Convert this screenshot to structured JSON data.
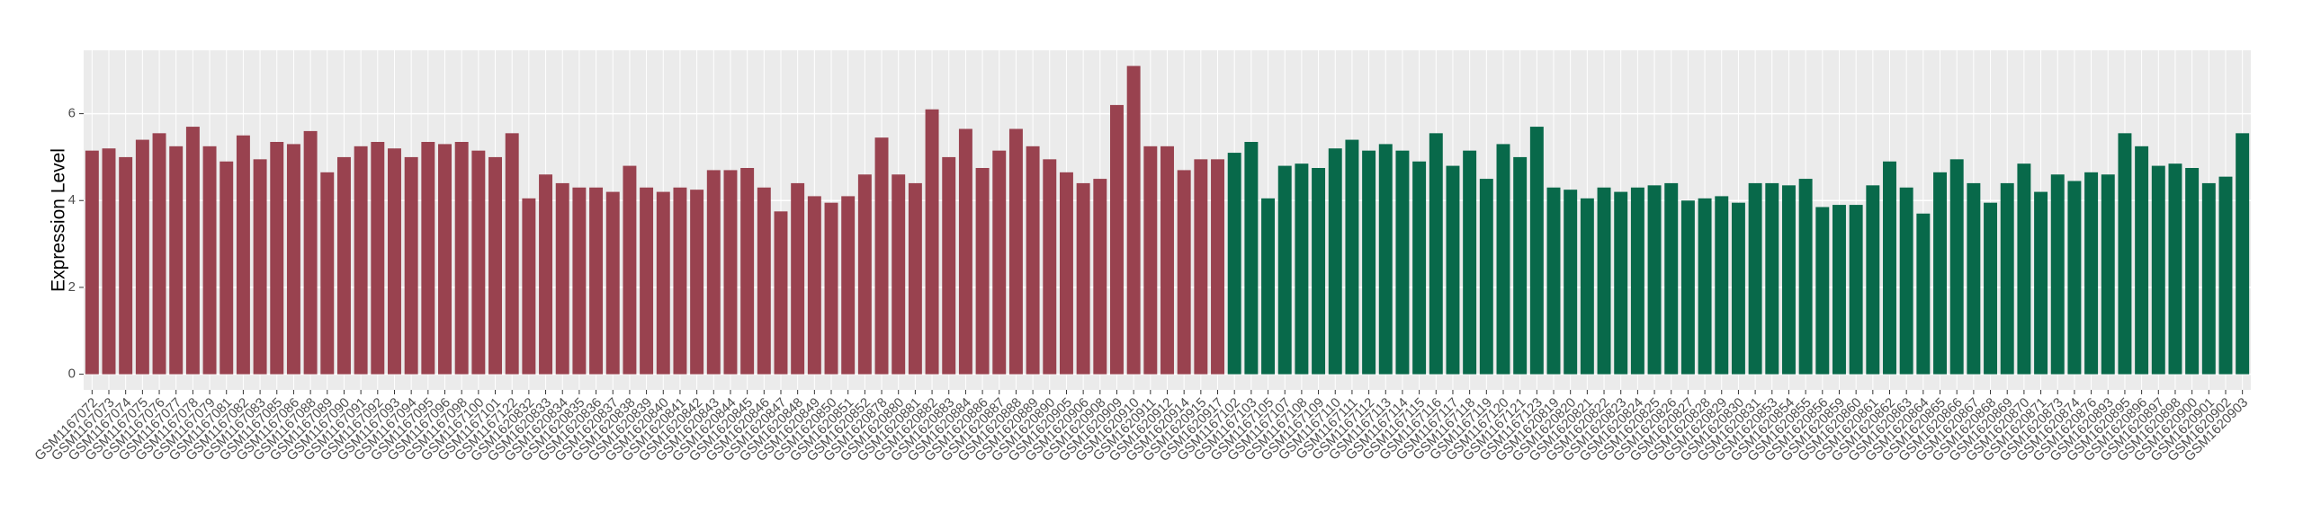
{
  "chart_data": {
    "type": "bar",
    "y_label": "Expression Level",
    "ylim": [
      -0.36,
      7.46
    ],
    "yticks": [
      0,
      2,
      4,
      6
    ],
    "grid": true,
    "groups": [
      {
        "color": "#99424f",
        "categories": [
          "GSM1167072",
          "GSM1167073",
          "GSM1167074",
          "GSM1167075",
          "GSM1167076",
          "GSM1167077",
          "GSM1167078",
          "GSM1167079",
          "GSM1167081",
          "GSM1167082",
          "GSM1167083",
          "GSM1167085",
          "GSM1167086",
          "GSM1167088",
          "GSM1167089",
          "GSM1167090",
          "GSM1167091",
          "GSM1167092",
          "GSM1167093",
          "GSM1167094",
          "GSM1167095",
          "GSM1167096",
          "GSM1167098",
          "GSM1167100",
          "GSM1167101",
          "GSM1167122",
          "GSM1620832",
          "GSM1620833",
          "GSM1620834",
          "GSM1620835",
          "GSM1620836",
          "GSM1620837",
          "GSM1620838",
          "GSM1620839",
          "GSM1620840",
          "GSM1620841",
          "GSM1620842",
          "GSM1620843",
          "GSM1620844",
          "GSM1620845",
          "GSM1620846",
          "GSM1620847",
          "GSM1620848",
          "GSM1620849",
          "GSM1620850",
          "GSM1620851",
          "GSM1620852",
          "GSM1620878",
          "GSM1620880",
          "GSM1620881",
          "GSM1620882",
          "GSM1620883",
          "GSM1620884",
          "GSM1620886",
          "GSM1620887",
          "GSM1620888",
          "GSM1620889",
          "GSM1620890",
          "GSM1620905",
          "GSM1620906",
          "GSM1620908",
          "GSM1620909",
          "GSM1620910",
          "GSM1620911",
          "GSM1620912",
          "GSM1620914",
          "GSM1620915",
          "GSM1620917"
        ],
        "values": [
          5.15,
          5.2,
          5.0,
          5.4,
          5.55,
          5.25,
          5.7,
          5.25,
          4.9,
          5.5,
          4.95,
          5.35,
          5.3,
          5.6,
          4.65,
          5.0,
          5.25,
          5.35,
          5.2,
          5.0,
          5.35,
          5.3,
          5.35,
          5.15,
          5.0,
          5.55,
          4.05,
          4.6,
          4.4,
          4.3,
          4.3,
          4.2,
          4.8,
          4.3,
          4.2,
          4.3,
          4.25,
          4.7,
          4.7,
          4.75,
          4.3,
          3.75,
          4.4,
          4.1,
          3.95,
          4.1,
          4.6,
          5.45,
          4.6,
          4.4,
          6.1,
          5.0,
          5.65,
          4.75,
          5.15,
          5.65,
          5.25,
          4.95,
          4.65,
          4.4,
          4.5,
          6.2,
          7.1,
          5.25,
          5.25,
          4.7,
          4.95,
          4.95
        ]
      },
      {
        "color": "#08694a",
        "categories": [
          "GSM1167102",
          "GSM1167103",
          "GSM1167105",
          "GSM1167107",
          "GSM1167108",
          "GSM1167109",
          "GSM1167110",
          "GSM1167111",
          "GSM1167112",
          "GSM1167113",
          "GSM1167114",
          "GSM1167115",
          "GSM1167116",
          "GSM1167117",
          "GSM1167118",
          "GSM1167119",
          "GSM1167120",
          "GSM1167121",
          "GSM1167123",
          "GSM1620819",
          "GSM1620820",
          "GSM1620821",
          "GSM1620822",
          "GSM1620823",
          "GSM1620824",
          "GSM1620825",
          "GSM1620826",
          "GSM1620827",
          "GSM1620828",
          "GSM1620829",
          "GSM1620830",
          "GSM1620831",
          "GSM1620853",
          "GSM1620854",
          "GSM1620855",
          "GSM1620856",
          "GSM1620859",
          "GSM1620860",
          "GSM1620861",
          "GSM1620862",
          "GSM1620863",
          "GSM1620864",
          "GSM1620865",
          "GSM1620866",
          "GSM1620867",
          "GSM1620868",
          "GSM1620869",
          "GSM1620870",
          "GSM1620871",
          "GSM1620873",
          "GSM1620874",
          "GSM1620876",
          "GSM1620893",
          "GSM1620895",
          "GSM1620896",
          "GSM1620897",
          "GSM1620898",
          "GSM1620900",
          "GSM1620901",
          "GSM1620902",
          "GSM1620903"
        ],
        "values": [
          5.1,
          5.35,
          4.05,
          4.8,
          4.85,
          4.75,
          5.2,
          5.4,
          5.15,
          5.3,
          5.15,
          4.9,
          5.55,
          4.8,
          5.15,
          4.5,
          5.3,
          5.0,
          5.7,
          4.3,
          4.25,
          4.05,
          4.3,
          4.2,
          4.3,
          4.35,
          4.4,
          4.0,
          4.05,
          4.1,
          3.95,
          4.4,
          4.4,
          4.35,
          4.5,
          3.85,
          3.9,
          3.9,
          4.35,
          4.9,
          4.3,
          3.7,
          4.65,
          4.95,
          4.4,
          3.95,
          4.4,
          4.85,
          4.2,
          4.6,
          4.45,
          4.65,
          4.6,
          5.55,
          5.25,
          4.8,
          4.85,
          4.75,
          4.4,
          4.55,
          5.55
        ]
      }
    ]
  }
}
